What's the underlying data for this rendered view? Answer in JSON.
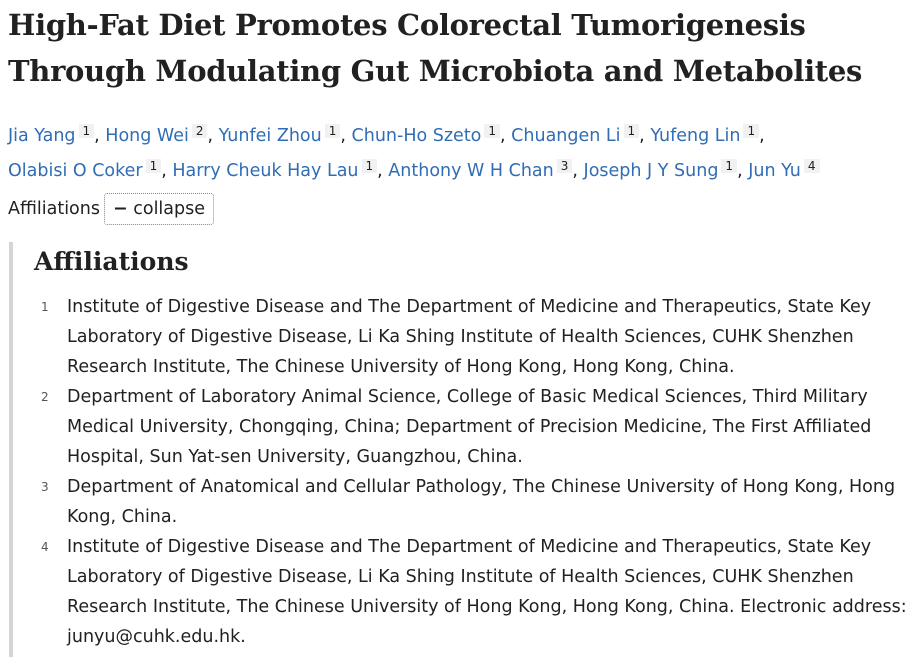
{
  "header": {
    "title": "High-Fat Diet Promotes Colorectal Tumorigenesis Through Modulating Gut Microbiota and Metabolites"
  },
  "authors": [
    {
      "name": "Jia Yang",
      "affiliation": "1"
    },
    {
      "name": "Hong Wei",
      "affiliation": "2"
    },
    {
      "name": "Yunfei Zhou",
      "affiliation": "1"
    },
    {
      "name": "Chun-Ho Szeto",
      "affiliation": "1"
    },
    {
      "name": "Chuangen Li",
      "affiliation": "1"
    },
    {
      "name": "Yufeng Lin",
      "affiliation": "1"
    },
    {
      "name": "Olabisi O Coker",
      "affiliation": "1"
    },
    {
      "name": "Harry Cheuk Hay Lau",
      "affiliation": "1"
    },
    {
      "name": "Anthony W H Chan",
      "affiliation": "3"
    },
    {
      "name": "Joseph J Y Sung",
      "affiliation": "1"
    },
    {
      "name": "Jun Yu",
      "affiliation": "4"
    }
  ],
  "affiliations_toggle": {
    "label": "Affiliations",
    "button": "collapse"
  },
  "affiliations": {
    "heading": "Affiliations",
    "items": [
      {
        "number": "1",
        "text": "Institute of Digestive Disease and The Department of Medicine and Therapeutics, State Key Laboratory of Digestive Disease, Li Ka Shing Institute of Health Sciences, CUHK Shenzhen Research Institute, The Chinese University of Hong Kong, Hong Kong, China."
      },
      {
        "number": "2",
        "text": "Department of Laboratory Animal Science, College of Basic Medical Sciences, Third Military Medical University, Chongqing, China; Department of Precision Medicine, The First Affiliated Hospital, Sun Yat-sen University, Guangzhou, China."
      },
      {
        "number": "3",
        "text": "Department of Anatomical and Cellular Pathology, The Chinese University of Hong Kong, Hong Kong, China."
      },
      {
        "number": "4",
        "text": "Institute of Digestive Disease and The Department of Medicine and Therapeutics, State Key Laboratory of Digestive Disease, Li Ka Shing Institute of Health Sciences, CUHK Shenzhen Research Institute, The Chinese University of Hong Kong, Hong Kong, China. Electronic address: junyu@cuhk.edu.hk."
      }
    ]
  }
}
